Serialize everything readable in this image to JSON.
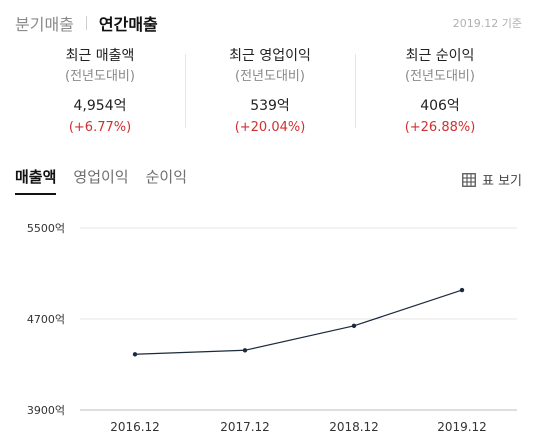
{
  "header": {
    "tabs": [
      {
        "label": "분기매출",
        "active": false
      },
      {
        "label": "연간매출",
        "active": true
      }
    ],
    "as_of": "2019.12 기준"
  },
  "summary": [
    {
      "title": "최근 매출액",
      "sub": "(전년도대비)",
      "value": "4,954억",
      "change": "(+6.77%)"
    },
    {
      "title": "최근 영업이익",
      "sub": "(전년도대비)",
      "value": "539억",
      "change": "(+20.04%)"
    },
    {
      "title": "최근 순이익",
      "sub": "(전년도대비)",
      "value": "406억",
      "change": "(+26.88%)"
    }
  ],
  "metric_tabs": [
    {
      "label": "매출액",
      "active": true
    },
    {
      "label": "영업이익",
      "active": false
    },
    {
      "label": "순이익",
      "active": false
    }
  ],
  "table_view_label": "표 보기",
  "colors": {
    "accent": "#111111",
    "positive": "#d0302f",
    "line": "#1b2a3a",
    "grid": "#e6e6e6"
  },
  "chart_data": {
    "type": "line",
    "categories": [
      "2016.12",
      "2017.12",
      "2018.12",
      "2019.12"
    ],
    "values": [
      4390,
      4425,
      4640,
      4954
    ],
    "y_ticks": [
      {
        "value": 5500,
        "label": "5500억"
      },
      {
        "value": 4700,
        "label": "4700억"
      },
      {
        "value": 3900,
        "label": "3900억"
      }
    ],
    "ylim": [
      3900,
      5500
    ],
    "grid": true
  }
}
